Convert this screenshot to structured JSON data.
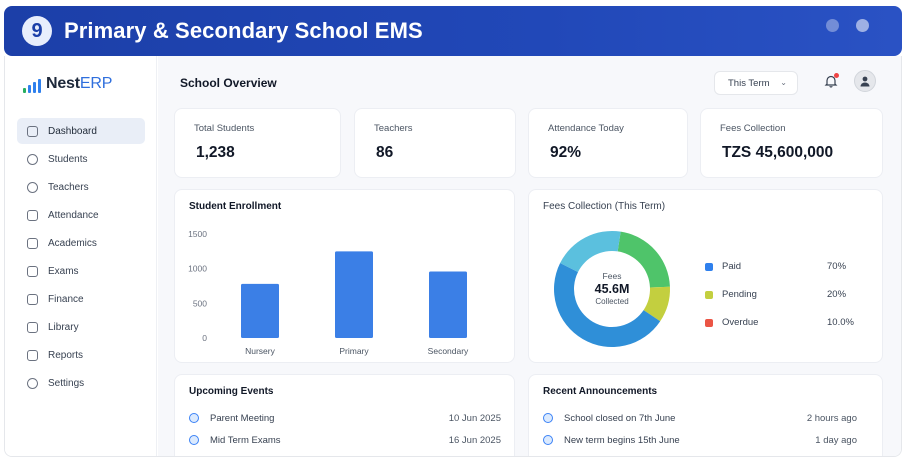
{
  "banner": {
    "number": "9",
    "title": "Primary & Secondary School EMS"
  },
  "app": {
    "logo_main": "Nest",
    "logo_accent": "ERP"
  },
  "sidebar": {
    "items": [
      {
        "label": "Dashboard",
        "icon": "home-icon",
        "active": true
      },
      {
        "label": "Students",
        "icon": "users-icon"
      },
      {
        "label": "Teachers",
        "icon": "teacher-icon"
      },
      {
        "label": "Attendance",
        "icon": "calendar-check-icon"
      },
      {
        "label": "Academics",
        "icon": "book-icon"
      },
      {
        "label": "Exams",
        "icon": "clipboard-icon"
      },
      {
        "label": "Finance",
        "icon": "wallet-icon"
      },
      {
        "label": "Library",
        "icon": "library-icon"
      },
      {
        "label": "Reports",
        "icon": "chart-icon"
      },
      {
        "label": "Settings",
        "icon": "gear-icon"
      }
    ]
  },
  "header": {
    "title": "School Overview",
    "term": "This Term"
  },
  "stats": [
    {
      "label": "Total Students",
      "value": "1,238"
    },
    {
      "label": "Teachers",
      "value": "86"
    },
    {
      "label": "Attendance Today",
      "value": "92%"
    },
    {
      "label": "Fees Collection",
      "value": "TZS 45,600,000"
    }
  ],
  "enrollment": {
    "title": "Student Enrollment"
  },
  "fees": {
    "title": "Fees Collection (This Term)",
    "center_top": "Fees",
    "center_value": "45.6M",
    "center_bottom": "Collected",
    "legend": [
      {
        "label": "Paid",
        "pct": "70%",
        "color": "#2f80ed"
      },
      {
        "label": "Pending",
        "pct": "20%",
        "color": "#c3cf3f"
      },
      {
        "label": "Overdue",
        "pct": "10.0%",
        "color": "#eb5545"
      }
    ]
  },
  "events": {
    "title": "Upcoming Events",
    "items": [
      {
        "label": "Parent Meeting",
        "date": "10 Jun 2025"
      },
      {
        "label": "Mid Term Exams",
        "date": "16 Jun 2025"
      }
    ]
  },
  "announcements": {
    "title": "Recent Announcements",
    "items": [
      {
        "label": "School closed on 7th June",
        "time": "2 hours ago"
      },
      {
        "label": "New term begins 15th June",
        "time": "1 day ago"
      }
    ]
  },
  "chart_data": {
    "type": "bar",
    "title": "Student Enrollment",
    "categories": [
      "Nursery",
      "Primary",
      "Secondary"
    ],
    "values": [
      780,
      1250,
      960
    ],
    "ylim": [
      0,
      1500
    ],
    "yticks": [
      "0",
      "500",
      "1000",
      "1500"
    ],
    "grid": false,
    "color": "#3b7fe6"
  },
  "donut_data": {
    "type": "pie",
    "values": [
      70,
      20,
      10
    ],
    "colors": [
      "#2f8fd8",
      "#c3cf3f",
      "#5bc0de"
    ],
    "start_color": "#4fc46a"
  }
}
